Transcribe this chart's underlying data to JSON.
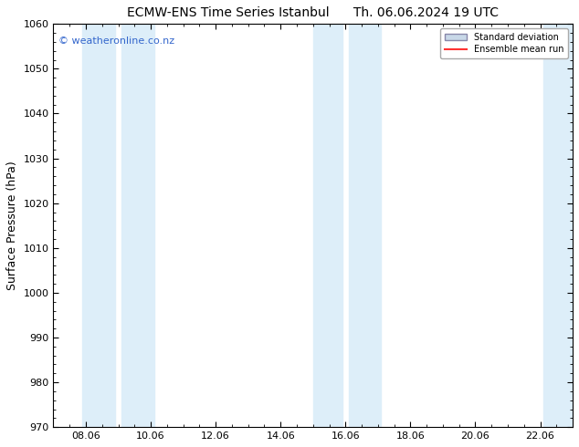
{
  "title_left": "ECMW-ENS Time Series Istanbul",
  "title_right": "Th. 06.06.2024 19 UTC",
  "ylabel": "Surface Pressure (hPa)",
  "ylim": [
    970,
    1060
  ],
  "yticks": [
    970,
    980,
    990,
    1000,
    1010,
    1020,
    1030,
    1040,
    1050,
    1060
  ],
  "xtick_labels": [
    "08.06",
    "10.06",
    "12.06",
    "14.06",
    "16.06",
    "18.06",
    "20.06",
    "22.06"
  ],
  "xtick_positions": [
    8,
    10,
    12,
    14,
    16,
    18,
    20,
    22
  ],
  "xlim": [
    7,
    23
  ],
  "shaded_bands": [
    {
      "x_start": 7.9,
      "x_end": 8.9,
      "color": "#ddeef9"
    },
    {
      "x_start": 9.1,
      "x_end": 10.1,
      "color": "#ddeef9"
    },
    {
      "x_start": 15.0,
      "x_end": 15.9,
      "color": "#ddeef9"
    },
    {
      "x_start": 16.1,
      "x_end": 17.1,
      "color": "#ddeef9"
    },
    {
      "x_start": 22.1,
      "x_end": 23.1,
      "color": "#ddeef9"
    }
  ],
  "watermark": "© weatheronline.co.nz",
  "watermark_color": "#3366cc",
  "background_color": "#ffffff",
  "legend_std_color": "#c8d8e8",
  "legend_std_edge": "#8888aa",
  "legend_ens_color": "#ff3333",
  "title_fontsize": 10,
  "tick_fontsize": 8,
  "ylabel_fontsize": 9
}
